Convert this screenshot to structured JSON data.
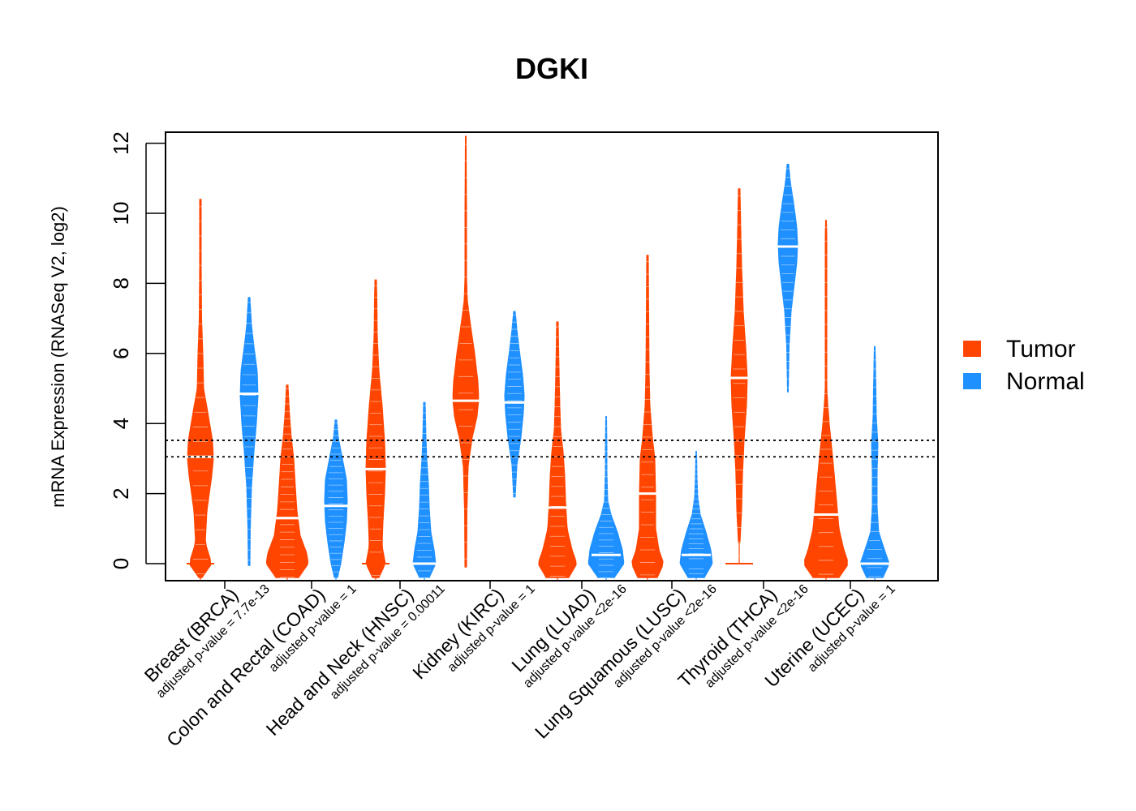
{
  "chart_data": {
    "type": "beanplot",
    "title": "DGKI",
    "xlabel": "",
    "ylabel": "mRNA Expression (RNASeq V2, log2)",
    "ylim": [
      -0.5,
      12.3
    ],
    "yticks": [
      0,
      2,
      4,
      6,
      8,
      10,
      12
    ],
    "reference_lines": [
      3.05,
      3.52
    ],
    "legend": {
      "placement": "right",
      "entries": [
        {
          "name": "Tumor",
          "color": "#FF4500"
        },
        {
          "name": "Normal",
          "color": "#1E90FF"
        }
      ]
    },
    "categories": [
      {
        "label": "Breast (BRCA)",
        "pvalue": "adjusted p-value = 7.7e-13"
      },
      {
        "label": "Colon and Rectal (COAD)",
        "pvalue": "adjusted p-value = 1"
      },
      {
        "label": "Head and Neck (HNSC)",
        "pvalue": "adjusted p-value = 0.00011"
      },
      {
        "label": "Kidney (KIRC)",
        "pvalue": "adjusted p-value = 1"
      },
      {
        "label": "Lung (LUAD)",
        "pvalue": "adjusted p-value <2e-16"
      },
      {
        "label": "Lung Squamous (LUSC)",
        "pvalue": "adjusted p-value <2e-16"
      },
      {
        "label": "Thyroid (THCA)",
        "pvalue": "adjusted p-value <2e-16"
      },
      {
        "label": "Uterine (UCEC)",
        "pvalue": "adjusted p-value = 1"
      }
    ],
    "series": [
      {
        "name": "Tumor",
        "beans": [
          {
            "min": -0.5,
            "max": 10.4,
            "median": 3.05,
            "mean": 3.05,
            "zero_mass": true,
            "profile": [
              [
                -0.4,
                2
              ],
              [
                0,
                14
              ],
              [
                0.6,
                6
              ],
              [
                1.5,
                8
              ],
              [
                2.5,
                14
              ],
              [
                3,
                16
              ],
              [
                3.5,
                15
              ],
              [
                4.2,
                10
              ],
              [
                5,
                4
              ],
              [
                6,
                3
              ],
              [
                7,
                1.5
              ],
              [
                8.5,
                1
              ],
              [
                10.4,
                1
              ]
            ]
          },
          {
            "min": -0.5,
            "max": 5.1,
            "median": 1.3,
            "mean": 1.3,
            "zero_mass": true,
            "profile": [
              [
                -0.4,
                14
              ],
              [
                0,
                26
              ],
              [
                0.3,
                24
              ],
              [
                0.8,
                16
              ],
              [
                1.5,
                12
              ],
              [
                2.2,
                10
              ],
              [
                3,
                8
              ],
              [
                3.6,
                5
              ],
              [
                4.2,
                3
              ],
              [
                5.1,
                1
              ]
            ]
          },
          {
            "min": -0.5,
            "max": 8.1,
            "median": 2.7,
            "mean": 2.7,
            "zero_mass": true,
            "profile": [
              [
                -0.4,
                4
              ],
              [
                0,
                12
              ],
              [
                0.5,
                8
              ],
              [
                1.2,
                9
              ],
              [
                2,
                11
              ],
              [
                2.7,
                12
              ],
              [
                3.5,
                11
              ],
              [
                4.5,
                8
              ],
              [
                5.5,
                4
              ],
              [
                6.5,
                2
              ],
              [
                7.5,
                1.5
              ],
              [
                8.1,
                1
              ]
            ]
          },
          {
            "min": -0.1,
            "max": 12.2,
            "median": 4.65,
            "mean": 4.65,
            "zero_mass": false,
            "profile": [
              [
                -0.1,
                1
              ],
              [
                1.5,
                1.5
              ],
              [
                2.8,
                3
              ],
              [
                3.6,
                8
              ],
              [
                4.2,
                14
              ],
              [
                4.7,
                16
              ],
              [
                5.2,
                15
              ],
              [
                6,
                11
              ],
              [
                6.8,
                6
              ],
              [
                7.5,
                2
              ],
              [
                8.2,
                1
              ],
              [
                10,
                1
              ],
              [
                12.2,
                0.5
              ]
            ]
          },
          {
            "min": -0.5,
            "max": 6.9,
            "median": 1.6,
            "mean": 1.6,
            "zero_mass": true,
            "profile": [
              [
                -0.4,
                14
              ],
              [
                0,
                24
              ],
              [
                0.4,
                18
              ],
              [
                1,
                12
              ],
              [
                1.8,
                10
              ],
              [
                2.5,
                9
              ],
              [
                3.2,
                7
              ],
              [
                3.8,
                4
              ],
              [
                4.5,
                3
              ],
              [
                5.5,
                2
              ],
              [
                6.9,
                1
              ]
            ]
          },
          {
            "min": -0.5,
            "max": 8.8,
            "median": 2.0,
            "mean": 2.0,
            "zero_mass": true,
            "profile": [
              [
                -0.4,
                12
              ],
              [
                0,
                20
              ],
              [
                0.4,
                14
              ],
              [
                1,
                10
              ],
              [
                2,
                10
              ],
              [
                3,
                9
              ],
              [
                3.6,
                6
              ],
              [
                4.5,
                3
              ],
              [
                5.5,
                2
              ],
              [
                7,
                1.5
              ],
              [
                8.8,
                1
              ]
            ]
          },
          {
            "min": 0,
            "max": 10.7,
            "median": 5.3,
            "mean": 5.3,
            "zero_mass": true,
            "profile": [
              [
                0.6,
                1
              ],
              [
                1.5,
                3
              ],
              [
                2.5,
                4
              ],
              [
                3.5,
                6
              ],
              [
                4.5,
                9
              ],
              [
                5.3,
                10
              ],
              [
                6.2,
                8
              ],
              [
                7.2,
                5
              ],
              [
                8.5,
                3
              ],
              [
                9.5,
                2
              ],
              [
                10.7,
                1
              ]
            ]
          },
          {
            "min": -0.5,
            "max": 9.8,
            "median": 1.4,
            "mean": 1.4,
            "zero_mass": true,
            "profile": [
              [
                -0.4,
                16
              ],
              [
                0,
                28
              ],
              [
                0.4,
                22
              ],
              [
                1,
                16
              ],
              [
                1.8,
                13
              ],
              [
                2.6,
                10
              ],
              [
                3.3,
                7
              ],
              [
                4,
                4
              ],
              [
                4.6,
                2
              ],
              [
                5,
                1
              ],
              [
                9.4,
                1
              ],
              [
                9.8,
                0.5
              ]
            ]
          }
        ]
      },
      {
        "name": "Normal",
        "beans": [
          {
            "min": -0.05,
            "max": 7.6,
            "median": 4.85,
            "mean": 4.85,
            "zero_mass": false,
            "profile": [
              [
                -0.05,
                1
              ],
              [
                1,
                1.5
              ],
              [
                2.2,
                3
              ],
              [
                3.2,
                6
              ],
              [
                4,
                9
              ],
              [
                4.8,
                11
              ],
              [
                5.5,
                10
              ],
              [
                6.2,
                6
              ],
              [
                6.8,
                3
              ],
              [
                7.6,
                1
              ]
            ]
          },
          {
            "min": -0.5,
            "max": 4.1,
            "median": 1.65,
            "mean": 1.65,
            "zero_mass": false,
            "profile": [
              [
                -0.4,
                2
              ],
              [
                0,
                6
              ],
              [
                0.6,
                10
              ],
              [
                1.2,
                13
              ],
              [
                1.8,
                14
              ],
              [
                2.4,
                13
              ],
              [
                3,
                8
              ],
              [
                3.6,
                3
              ],
              [
                4.1,
                1
              ]
            ]
          },
          {
            "min": -0.5,
            "max": 4.6,
            "median": 0.0,
            "mean": 0.0,
            "zero_mass": true,
            "profile": [
              [
                -0.4,
                6
              ],
              [
                0,
                14
              ],
              [
                0.4,
                12
              ],
              [
                0.9,
                8
              ],
              [
                1.6,
                6
              ],
              [
                2.3,
                5
              ],
              [
                3,
                3
              ],
              [
                3.6,
                2
              ],
              [
                4.6,
                1
              ]
            ]
          },
          {
            "min": 1.9,
            "max": 7.2,
            "median": 4.6,
            "mean": 4.6,
            "zero_mass": false,
            "profile": [
              [
                1.9,
                1
              ],
              [
                2.8,
                3
              ],
              [
                3.6,
                8
              ],
              [
                4.3,
                11
              ],
              [
                4.8,
                12
              ],
              [
                5.4,
                10
              ],
              [
                6.1,
                6
              ],
              [
                6.7,
                3
              ],
              [
                7.2,
                1
              ]
            ]
          },
          {
            "min": -0.5,
            "max": 4.2,
            "median": 0.25,
            "mean": 0.25,
            "zero_mass": true,
            "profile": [
              [
                -0.4,
                10
              ],
              [
                0,
                22
              ],
              [
                0.4,
                20
              ],
              [
                0.9,
                14
              ],
              [
                1.4,
                6
              ],
              [
                1.8,
                2
              ],
              [
                2.6,
                1
              ],
              [
                3.4,
                1
              ],
              [
                4.2,
                0.5
              ]
            ]
          },
          {
            "min": -0.5,
            "max": 3.2,
            "median": 0.25,
            "mean": 0.25,
            "zero_mass": true,
            "profile": [
              [
                -0.4,
                10
              ],
              [
                0,
                20
              ],
              [
                0.4,
                18
              ],
              [
                0.9,
                12
              ],
              [
                1.4,
                5
              ],
              [
                1.9,
                2
              ],
              [
                2.5,
                1
              ],
              [
                3.2,
                0.5
              ]
            ]
          },
          {
            "min": 4.9,
            "max": 11.4,
            "median": 9.05,
            "mean": 9.05,
            "zero_mass": false,
            "profile": [
              [
                4.9,
                0.5
              ],
              [
                6.2,
                1.5
              ],
              [
                7.2,
                4
              ],
              [
                8,
                8
              ],
              [
                8.6,
                11
              ],
              [
                9.1,
                12
              ],
              [
                9.6,
                11
              ],
              [
                10.3,
                7
              ],
              [
                10.9,
                3
              ],
              [
                11.4,
                1
              ]
            ]
          },
          {
            "min": -0.5,
            "max": 6.2,
            "median": 0.0,
            "mean": 0.0,
            "zero_mass": true,
            "profile": [
              [
                -0.4,
                10
              ],
              [
                0,
                18
              ],
              [
                0.4,
                12
              ],
              [
                0.9,
                5
              ],
              [
                1.6,
                3
              ],
              [
                2.6,
                3
              ],
              [
                3.4,
                4
              ],
              [
                4.2,
                2
              ],
              [
                5,
                1.5
              ],
              [
                6.2,
                0.5
              ]
            ]
          }
        ]
      }
    ]
  }
}
